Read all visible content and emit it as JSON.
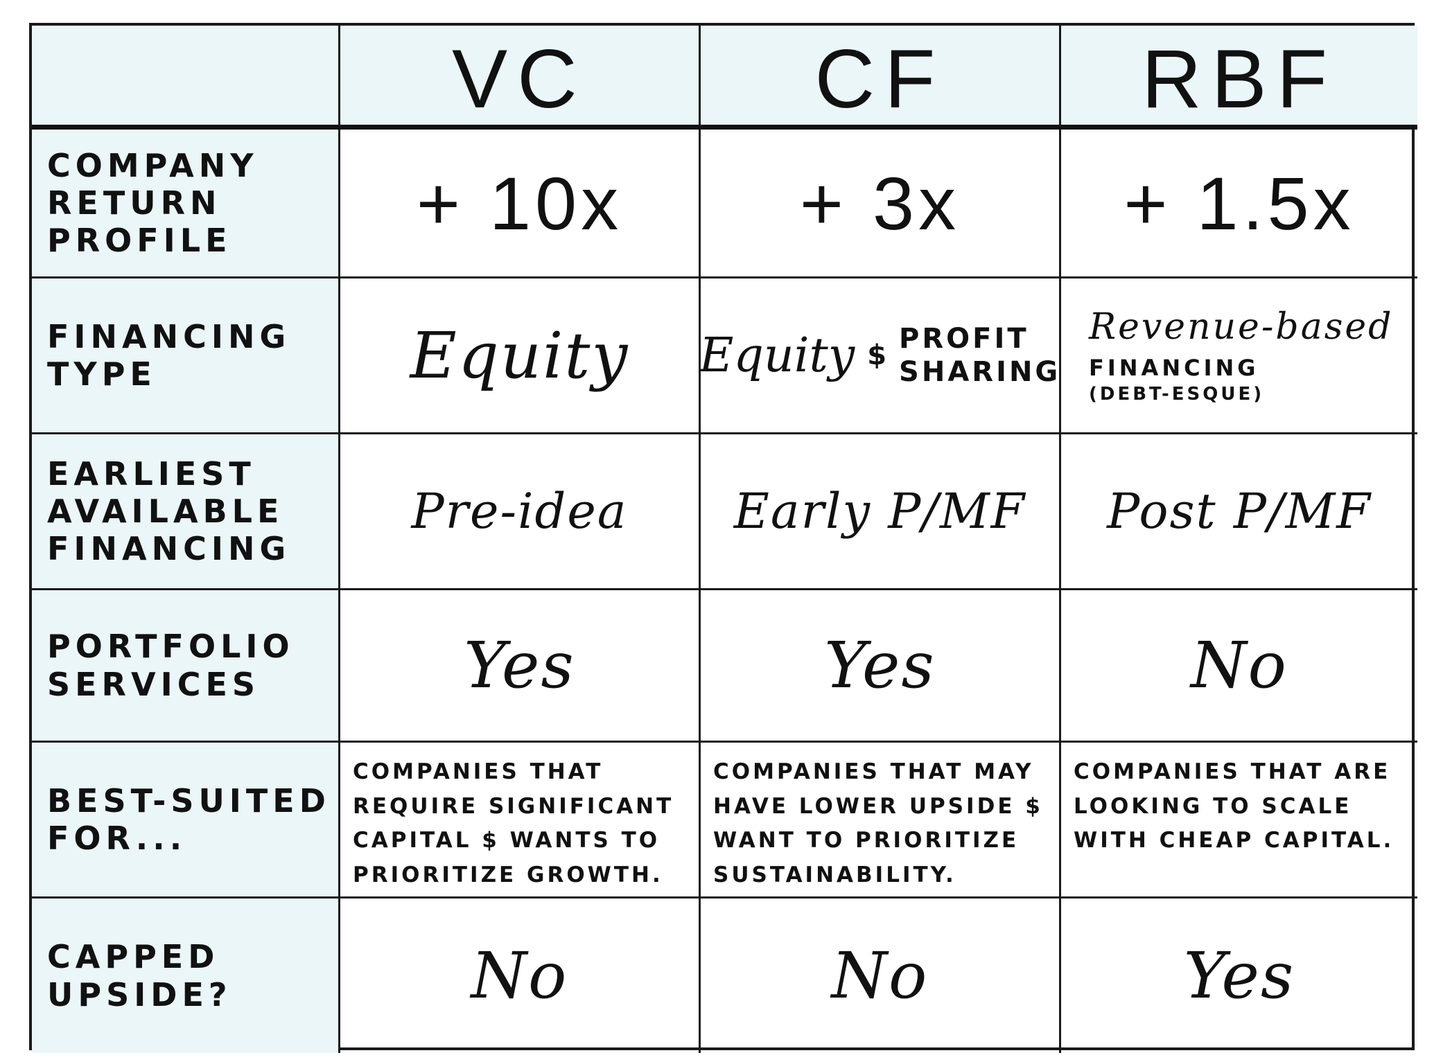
{
  "theme": {
    "shade": "#eaf6f8",
    "ink": "#111111"
  },
  "columns": [
    "VC",
    "CF",
    "RBF"
  ],
  "rows": [
    {
      "label": "Company\nReturn Profile",
      "values": [
        "+ 10x",
        "+ 3x",
        "+ 1.5x"
      ]
    },
    {
      "label": "Financing\nType",
      "values": [
        "Equity",
        "Equity",
        "Revenue-based"
      ],
      "cf_amp": "$",
      "cf_extra": "Profit\nSharing",
      "rbf_line2": "Financing",
      "rbf_line3": "(Debt-esque)"
    },
    {
      "label": "Earliest\nAvailable\nFinancing",
      "values": [
        "Pre-idea",
        "Early P/MF",
        "Post P/MF"
      ]
    },
    {
      "label": "Portfolio\nServices",
      "values": [
        "Yes",
        "Yes",
        "No"
      ]
    },
    {
      "label": "Best-Suited\nFor...",
      "values": [
        "Companies that require significant capital $ wants to prioritize growth.",
        "Companies that may have lower upside $ want to prioritize sustainability.",
        "Companies that are looking to scale with cheap capital."
      ]
    },
    {
      "label": "Capped\nUpside?",
      "values": [
        "No",
        "No",
        "Yes"
      ]
    }
  ]
}
